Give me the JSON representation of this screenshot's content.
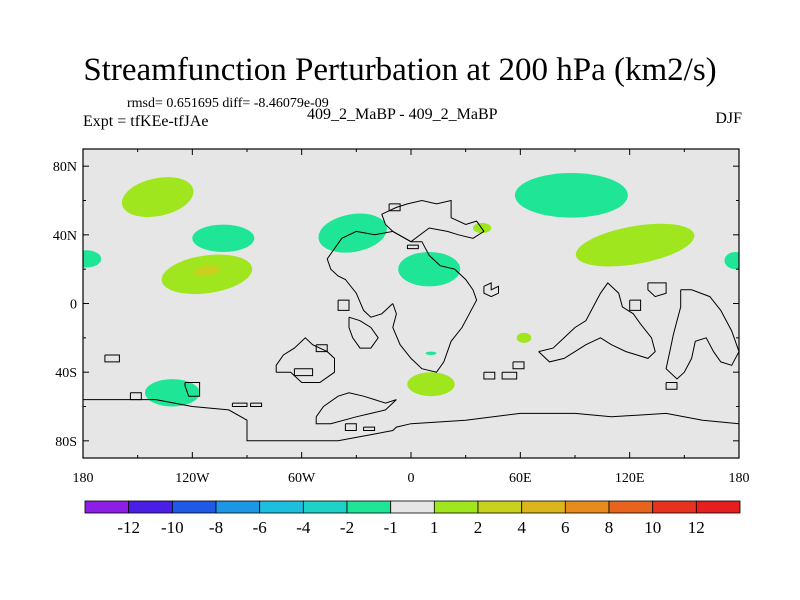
{
  "header": {
    "title": "Streamfunction Perturbation at 200 hPa (km2/s)",
    "stats": "rmsd= 0.651695 diff= -8.46079e-09",
    "expt": "Expt = tfKEe-tfJAe",
    "diff_label": "409_2_MaBP - 409_2_MaBP",
    "season": "DJF"
  },
  "chart_data": {
    "type": "heatmap",
    "title": "Streamfunction Perturbation at 200 hPa (km2/s)",
    "xlabel": "",
    "ylabel": "",
    "xlim": [
      -180,
      180
    ],
    "ylim": [
      -90,
      90
    ],
    "x_ticks": [
      {
        "value": -180,
        "label": "180"
      },
      {
        "value": -120,
        "label": "120W"
      },
      {
        "value": -60,
        "label": "60W"
      },
      {
        "value": 0,
        "label": "0"
      },
      {
        "value": 60,
        "label": "60E"
      },
      {
        "value": 120,
        "label": "120E"
      },
      {
        "value": 180,
        "label": "180"
      }
    ],
    "y_ticks": [
      {
        "value": 80,
        "label": "80N"
      },
      {
        "value": 40,
        "label": "40N"
      },
      {
        "value": 0,
        "label": "0"
      },
      {
        "value": -40,
        "label": "40S"
      },
      {
        "value": -80,
        "label": "80S"
      }
    ],
    "background_color": "#e6e6e6",
    "colorbar": {
      "colors": [
        "#8c1ee6",
        "#4b1ee6",
        "#1e5ae6",
        "#1e96e6",
        "#1ebede",
        "#1ed2c8",
        "#1ee696",
        "#e6e6e6",
        "#a0e61e",
        "#c8d21e",
        "#dcb41e",
        "#e68c1e",
        "#e6641e",
        "#e6321e",
        "#e61e1e"
      ],
      "labels": [
        "-12",
        "-10",
        "-8",
        "-6",
        "-4",
        "-2",
        "-1",
        "1",
        "2",
        "4",
        "6",
        "8",
        "10",
        "12"
      ]
    },
    "anomalies": [
      {
        "lon": -139,
        "lat": 62,
        "rlon": 20,
        "rlat": 11,
        "rot": -12,
        "level": "1 to 2",
        "color": "#a0e61e"
      },
      {
        "lon": -103,
        "lat": 38,
        "rlon": 17,
        "rlat": 8,
        "rot": 0,
        "level": "-2 to -1",
        "color": "#1ee696"
      },
      {
        "lon": -178,
        "lat": 26,
        "rlon": 8,
        "rlat": 5,
        "rot": 0,
        "level": "-2 to -1",
        "color": "#1ee696"
      },
      {
        "lon": -112,
        "lat": 17,
        "rlon": 25,
        "rlat": 11,
        "rot": -8,
        "level": "1 to 2",
        "color": "#a0e61e"
      },
      {
        "lon": -112,
        "lat": 19,
        "rlon": 7,
        "rlat": 3,
        "rot": -8,
        "level": "2 to 4",
        "color": "#c8d21e"
      },
      {
        "lon": -32,
        "lat": 41,
        "rlon": 19,
        "rlat": 11,
        "rot": -10,
        "level": "-2 to -1",
        "color": "#1ee696"
      },
      {
        "lon": 10,
        "lat": 20,
        "rlon": 17,
        "rlat": 10,
        "rot": 0,
        "level": "-2 to -1",
        "color": "#1ee696"
      },
      {
        "lon": 39,
        "lat": 44,
        "rlon": 5,
        "rlat": 3,
        "rot": 0,
        "level": "1 to 2",
        "color": "#a0e61e"
      },
      {
        "lon": 88,
        "lat": 63,
        "rlon": 31,
        "rlat": 13,
        "rot": 0,
        "level": "-2 to -1",
        "color": "#1ee696"
      },
      {
        "lon": 123,
        "lat": 34,
        "rlon": 33,
        "rlat": 11,
        "rot": -10,
        "level": "1 to 2",
        "color": "#a0e61e"
      },
      {
        "lon": 178,
        "lat": 25,
        "rlon": 6,
        "rlat": 5,
        "rot": 0,
        "level": "-2 to -1",
        "color": "#1ee696"
      },
      {
        "lon": 62,
        "lat": -20,
        "rlon": 4,
        "rlat": 3,
        "rot": 0,
        "level": "1 to 2",
        "color": "#a0e61e"
      },
      {
        "lon": 11,
        "lat": -47,
        "rlon": 13,
        "rlat": 7,
        "rot": 0,
        "level": "1 to 2",
        "color": "#a0e61e"
      },
      {
        "lon": -131,
        "lat": -52,
        "rlon": 15,
        "rlat": 8,
        "rot": 0,
        "level": "-2 to -1",
        "color": "#1ee696"
      },
      {
        "lon": 11,
        "lat": -29,
        "rlon": 3,
        "rlat": 1,
        "rot": 0,
        "level": "-2 to -1",
        "color": "#1ee696"
      }
    ],
    "coastlines": [
      [
        [
          -180,
          -56
        ],
        [
          -140,
          -56
        ],
        [
          -120,
          -60
        ],
        [
          -100,
          -62
        ],
        [
          -90,
          -68
        ],
        [
          -90,
          -80
        ],
        [
          -40,
          -80
        ],
        [
          -30,
          -78
        ],
        [
          -20,
          -76
        ],
        [
          -10,
          -74
        ],
        [
          -8,
          -72
        ],
        [
          0,
          -70
        ],
        [
          30,
          -68
        ],
        [
          60,
          -64
        ],
        [
          90,
          -64
        ],
        [
          110,
          -66
        ],
        [
          140,
          -64
        ],
        [
          160,
          -68
        ],
        [
          180,
          -70
        ]
      ],
      [
        [
          -168,
          -30
        ],
        [
          -160,
          -30
        ],
        [
          -160,
          -34
        ],
        [
          -168,
          -34
        ],
        [
          -168,
          -30
        ]
      ],
      [
        [
          -124,
          -46
        ],
        [
          -116,
          -46
        ],
        [
          -116,
          -54
        ],
        [
          -122,
          -54
        ],
        [
          -124,
          -48
        ],
        [
          -124,
          -46
        ]
      ],
      [
        [
          -154,
          -52
        ],
        [
          -148,
          -52
        ],
        [
          -148,
          -56
        ],
        [
          -154,
          -56
        ],
        [
          -154,
          -52
        ]
      ],
      [
        [
          -98,
          -58
        ],
        [
          -90,
          -58
        ],
        [
          -90,
          -60
        ],
        [
          -98,
          -60
        ],
        [
          -98,
          -58
        ]
      ],
      [
        [
          -88,
          -58
        ],
        [
          -82,
          -58
        ],
        [
          -82,
          -60
        ],
        [
          -88,
          -60
        ],
        [
          -88,
          -58
        ]
      ],
      [
        [
          -52,
          -66
        ],
        [
          -48,
          -60
        ],
        [
          -40,
          -54
        ],
        [
          -34,
          -52
        ],
        [
          -26,
          -54
        ],
        [
          -20,
          -56
        ],
        [
          -14,
          -58
        ],
        [
          -8,
          -56
        ],
        [
          -14,
          -62
        ],
        [
          -22,
          -64
        ],
        [
          -30,
          -66
        ],
        [
          -44,
          -70
        ],
        [
          -52,
          -70
        ],
        [
          -52,
          -66
        ]
      ],
      [
        [
          -36,
          -70
        ],
        [
          -30,
          -70
        ],
        [
          -30,
          -74
        ],
        [
          -36,
          -74
        ],
        [
          -36,
          -70
        ]
      ],
      [
        [
          -26,
          -72
        ],
        [
          -20,
          -72
        ],
        [
          -20,
          -74
        ],
        [
          -26,
          -74
        ],
        [
          -26,
          -72
        ]
      ],
      [
        [
          -10,
          0
        ],
        [
          -16,
          -6
        ],
        [
          -22,
          -8
        ],
        [
          -26,
          -4
        ],
        [
          -30,
          6
        ],
        [
          -36,
          14
        ],
        [
          -40,
          16
        ],
        [
          -44,
          20
        ],
        [
          -46,
          26
        ],
        [
          -38,
          38
        ],
        [
          -30,
          42
        ],
        [
          -20,
          40
        ],
        [
          -10,
          42
        ],
        [
          0,
          36
        ],
        [
          6,
          36
        ],
        [
          10,
          28
        ],
        [
          16,
          22
        ],
        [
          24,
          20
        ],
        [
          30,
          14
        ],
        [
          34,
          8
        ],
        [
          36,
          2
        ],
        [
          32,
          -6
        ],
        [
          28,
          -14
        ],
        [
          22,
          -22
        ],
        [
          18,
          -34
        ],
        [
          14,
          -40
        ],
        [
          6,
          -38
        ],
        [
          0,
          -32
        ],
        [
          -6,
          -24
        ],
        [
          -10,
          -14
        ],
        [
          -8,
          -6
        ],
        [
          -10,
          0
        ]
      ],
      [
        [
          -10,
          42
        ],
        [
          -14,
          46
        ],
        [
          -16,
          52
        ],
        [
          -8,
          56
        ],
        [
          -2,
          58
        ],
        [
          6,
          60
        ],
        [
          14,
          58
        ],
        [
          22,
          60
        ],
        [
          22,
          50
        ],
        [
          30,
          46
        ],
        [
          36,
          48
        ],
        [
          40,
          42
        ],
        [
          34,
          38
        ],
        [
          26,
          40
        ],
        [
          20,
          42
        ],
        [
          10,
          44
        ],
        [
          0,
          36
        ],
        [
          -10,
          42
        ]
      ],
      [
        [
          -12,
          58
        ],
        [
          -6,
          58
        ],
        [
          -6,
          54
        ],
        [
          -12,
          54
        ],
        [
          -12,
          58
        ]
      ],
      [
        [
          -2,
          34
        ],
        [
          4,
          34
        ],
        [
          4,
          32
        ],
        [
          -2,
          32
        ],
        [
          -2,
          34
        ]
      ],
      [
        [
          -74,
          -40
        ],
        [
          -66,
          -40
        ],
        [
          -60,
          -46
        ],
        [
          -50,
          -46
        ],
        [
          -42,
          -40
        ],
        [
          -42,
          -32
        ],
        [
          -46,
          -28
        ],
        [
          -54,
          -24
        ],
        [
          -58,
          -20
        ],
        [
          -64,
          -26
        ],
        [
          -70,
          -30
        ],
        [
          -74,
          -36
        ],
        [
          -74,
          -40
        ]
      ],
      [
        [
          -52,
          -24
        ],
        [
          -46,
          -24
        ],
        [
          -46,
          -28
        ],
        [
          -52,
          -28
        ],
        [
          -52,
          -24
        ]
      ],
      [
        [
          -64,
          -38
        ],
        [
          -54,
          -38
        ],
        [
          -54,
          -42
        ],
        [
          -64,
          -42
        ],
        [
          -64,
          -38
        ]
      ],
      [
        [
          -34,
          -8
        ],
        [
          -28,
          -10
        ],
        [
          -22,
          -14
        ],
        [
          -18,
          -20
        ],
        [
          -22,
          -26
        ],
        [
          -28,
          -26
        ],
        [
          -32,
          -20
        ],
        [
          -34,
          -14
        ],
        [
          -34,
          -8
        ]
      ],
      [
        [
          -40,
          2
        ],
        [
          -34,
          2
        ],
        [
          -34,
          -4
        ],
        [
          -40,
          -4
        ],
        [
          -40,
          2
        ]
      ],
      [
        [
          40,
          10
        ],
        [
          44,
          12
        ],
        [
          44,
          8
        ],
        [
          48,
          10
        ],
        [
          48,
          6
        ],
        [
          44,
          4
        ],
        [
          40,
          6
        ],
        [
          40,
          10
        ]
      ],
      [
        [
          40,
          -40
        ],
        [
          46,
          -40
        ],
        [
          46,
          -44
        ],
        [
          40,
          -44
        ],
        [
          40,
          -40
        ]
      ],
      [
        [
          50,
          -40
        ],
        [
          58,
          -40
        ],
        [
          58,
          -44
        ],
        [
          50,
          -44
        ],
        [
          50,
          -40
        ]
      ],
      [
        [
          56,
          -34
        ],
        [
          62,
          -34
        ],
        [
          62,
          -38
        ],
        [
          56,
          -38
        ],
        [
          56,
          -34
        ]
      ],
      [
        [
          70,
          -28
        ],
        [
          78,
          -26
        ],
        [
          84,
          -20
        ],
        [
          90,
          -14
        ],
        [
          96,
          -10
        ],
        [
          100,
          -2
        ],
        [
          104,
          6
        ],
        [
          108,
          12
        ],
        [
          114,
          6
        ],
        [
          116,
          -2
        ],
        [
          122,
          -6
        ],
        [
          126,
          -12
        ],
        [
          132,
          -20
        ],
        [
          134,
          -28
        ],
        [
          130,
          -32
        ],
        [
          124,
          -30
        ],
        [
          118,
          -28
        ],
        [
          110,
          -24
        ],
        [
          104,
          -20
        ],
        [
          96,
          -24
        ],
        [
          90,
          -28
        ],
        [
          84,
          -32
        ],
        [
          76,
          -34
        ],
        [
          70,
          -28
        ]
      ],
      [
        [
          120,
          2
        ],
        [
          126,
          2
        ],
        [
          126,
          -4
        ],
        [
          120,
          -4
        ],
        [
          120,
          2
        ]
      ],
      [
        [
          130,
          12
        ],
        [
          140,
          12
        ],
        [
          140,
          6
        ],
        [
          134,
          4
        ],
        [
          130,
          8
        ],
        [
          130,
          12
        ]
      ],
      [
        [
          148,
          8
        ],
        [
          154,
          8
        ],
        [
          164,
          4
        ],
        [
          170,
          -4
        ],
        [
          176,
          -16
        ],
        [
          180,
          -28
        ],
        [
          176,
          -36
        ],
        [
          170,
          -34
        ],
        [
          166,
          -28
        ],
        [
          162,
          -20
        ],
        [
          156,
          -22
        ],
        [
          154,
          -32
        ],
        [
          150,
          -40
        ],
        [
          146,
          -44
        ],
        [
          140,
          -38
        ],
        [
          142,
          -28
        ],
        [
          144,
          -18
        ],
        [
          146,
          -10
        ],
        [
          148,
          -2
        ],
        [
          148,
          8
        ]
      ],
      [
        [
          140,
          -46
        ],
        [
          146,
          -46
        ],
        [
          146,
          -50
        ],
        [
          140,
          -50
        ],
        [
          140,
          -46
        ]
      ]
    ]
  }
}
